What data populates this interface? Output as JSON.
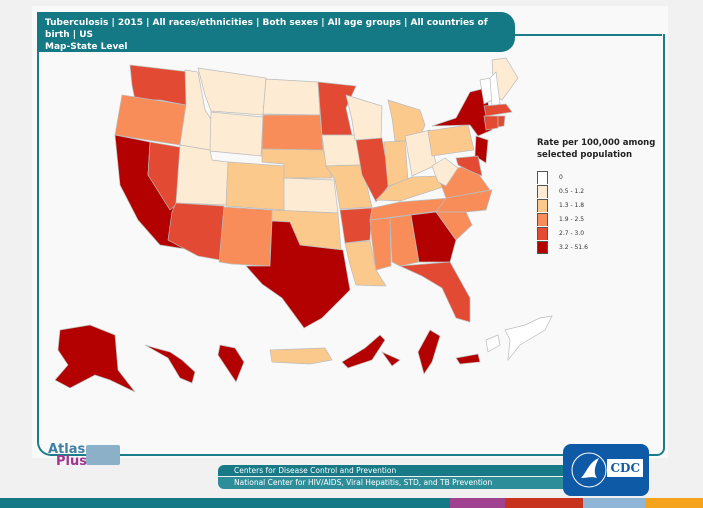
{
  "header": {
    "line1": "Tuberculosis | 2015 | All races/ethnicities | Both sexes | All age groups | All countries of birth | US",
    "line2": "Map-State Level"
  },
  "legend": {
    "title": "Rate per 100,000 among selected population",
    "items": [
      {
        "label": "0",
        "color": "#ffffff"
      },
      {
        "label": "0.5 - 1.2",
        "color": "#fdebd3"
      },
      {
        "label": "1.3 - 1.8",
        "color": "#fcc98c"
      },
      {
        "label": "1.9 - 2.5",
        "color": "#f98d59"
      },
      {
        "label": "2.7 - 3.0",
        "color": "#e34a33"
      },
      {
        "label": "3.2 - 51.6",
        "color": "#b30000"
      }
    ]
  },
  "map_data": {
    "WA": 4,
    "OR": 3,
    "CA": 5,
    "NV": 4,
    "ID": 1,
    "MT": 1,
    "WY": 1,
    "UT": 1,
    "CO": 2,
    "AZ": 4,
    "NM": 3,
    "ND": 1,
    "SD": 3,
    "NE": 2,
    "KS": 1,
    "OK": 2,
    "TX": 5,
    "MN": 4,
    "IA": 1,
    "MO": 2,
    "AR": 4,
    "LA": 2,
    "WI": 1,
    "IL": 4,
    "MI": 2,
    "IN": 2,
    "OH": 1,
    "KY": 2,
    "TN": 3,
    "MS": 3,
    "AL": 3,
    "GA": 5,
    "FL": 4,
    "SC": 3,
    "NC": 3,
    "VA": 3,
    "WV": 1,
    "PA": 2,
    "NY": 5,
    "NJ": 5,
    "MD": 4,
    "ME": 1,
    "VT": 0,
    "NH": 0,
    "MA": 4,
    "CT": 4,
    "RI": 4,
    "AK": 5,
    "HI": 5,
    "GU": 5,
    "PR": 2,
    "FM": 5,
    "MH": 5,
    "PW": 5,
    "MP": 5,
    "AS": 0,
    "VI": 0
  },
  "logos": {
    "atlas_top": "Atlas",
    "atlas_bottom": "Plus",
    "cdc": "CDC"
  },
  "footer": {
    "line1": "Centers for Disease Control and Prevention",
    "line2": "National Center for HIV/AIDS, Viral Hepatitis, STD, and TB Prevention"
  },
  "stripe_colors": [
    "#157985",
    "#a0428f",
    "#c8331f",
    "#8fb6d6",
    "#f5a21c"
  ]
}
